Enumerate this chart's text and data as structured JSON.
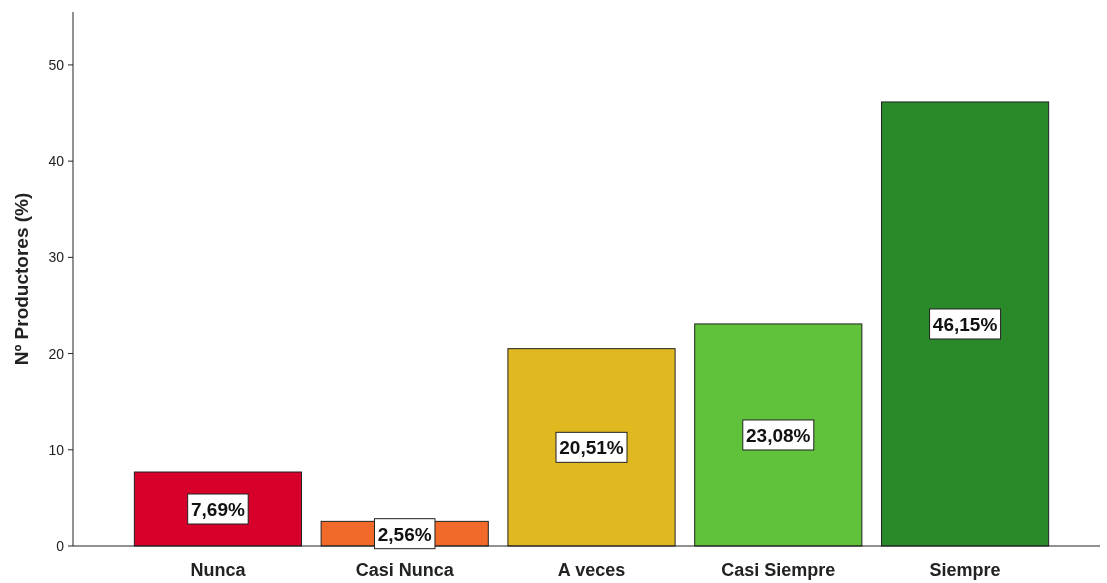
{
  "chart_data": {
    "type": "bar",
    "ylabel": "Nº Productores (%)",
    "categories": [
      "Nunca",
      "Casi Nunca",
      "A veces",
      "Casi Siempre",
      "Siempre"
    ],
    "values": [
      7.69,
      2.56,
      20.51,
      23.08,
      46.15
    ],
    "colors": [
      "#d7002a",
      "#f26a2a",
      "#e0b820",
      "#5fc23a",
      "#2a8a2a"
    ],
    "value_labels": [
      "7,69%",
      "2,56%",
      "20,51%",
      "23,08%",
      "46,15%"
    ],
    "ylim": [
      0,
      55.5
    ],
    "yticks": [
      0,
      10,
      20,
      30,
      40,
      50
    ]
  }
}
